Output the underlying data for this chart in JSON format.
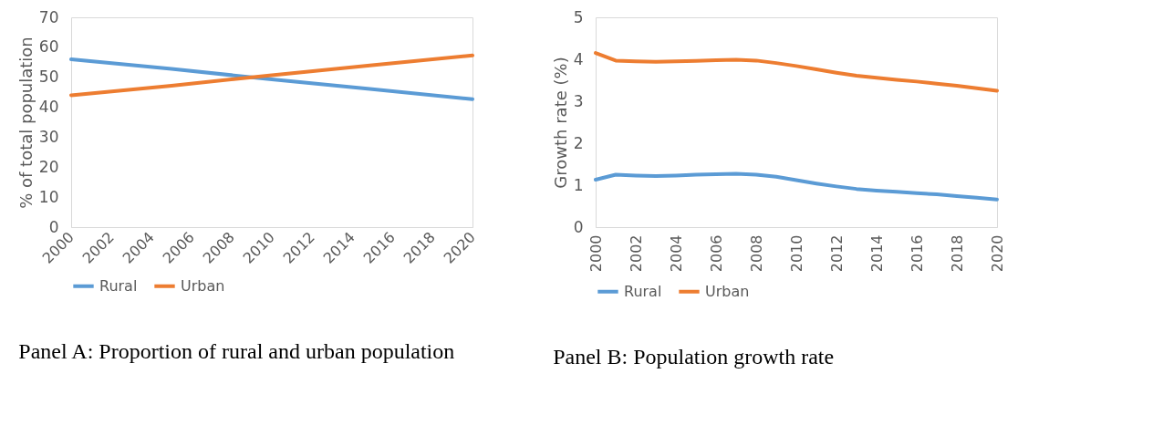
{
  "chart_data": [
    {
      "type": "line",
      "title": "Panel A: Proportion of rural and urban population",
      "ylabel": "% of total population",
      "x": [
        2000,
        2005,
        2009,
        2010,
        2015,
        2020
      ],
      "xlim": [
        2000,
        2020
      ],
      "xticks": [
        2000,
        2002,
        2004,
        2006,
        2008,
        2010,
        2012,
        2014,
        2016,
        2018,
        2020
      ],
      "ylim": [
        0,
        70
      ],
      "yticks": [
        0,
        10,
        20,
        30,
        40,
        50,
        60,
        70
      ],
      "grid": false,
      "legend": "bottom",
      "series": [
        {
          "name": "Rural",
          "color": "#5b9bd5",
          "values": [
            56.0,
            52.8,
            50.0,
            49.3,
            46.0,
            42.7
          ]
        },
        {
          "name": "Urban",
          "color": "#ed7d31",
          "values": [
            44.0,
            47.2,
            50.0,
            50.7,
            54.0,
            57.3
          ]
        }
      ]
    },
    {
      "type": "line",
      "title": "Panel B: Population growth rate",
      "ylabel": "Growth rate (%)",
      "x": [
        2000,
        2001,
        2002,
        2003,
        2004,
        2005,
        2006,
        2007,
        2008,
        2009,
        2010,
        2011,
        2012,
        2013,
        2014,
        2015,
        2016,
        2017,
        2018,
        2019,
        2020
      ],
      "xlim": [
        2000,
        2020
      ],
      "xticks": [
        2000,
        2002,
        2004,
        2006,
        2008,
        2010,
        2012,
        2014,
        2016,
        2018,
        2020
      ],
      "ylim": [
        0,
        5
      ],
      "yticks": [
        0,
        1,
        2,
        3,
        4,
        5
      ],
      "grid": false,
      "legend": "bottom",
      "series": [
        {
          "name": "Rural",
          "color": "#5b9bd5",
          "values": [
            1.13,
            1.25,
            1.23,
            1.22,
            1.23,
            1.25,
            1.26,
            1.27,
            1.25,
            1.2,
            1.12,
            1.04,
            0.97,
            0.91,
            0.87,
            0.84,
            0.81,
            0.78,
            0.74,
            0.7,
            0.66
          ]
        },
        {
          "name": "Urban",
          "color": "#ed7d31",
          "values": [
            4.15,
            3.97,
            3.95,
            3.94,
            3.95,
            3.96,
            3.98,
            3.99,
            3.97,
            3.91,
            3.84,
            3.76,
            3.68,
            3.61,
            3.56,
            3.51,
            3.47,
            3.42,
            3.37,
            3.31,
            3.25
          ]
        }
      ]
    }
  ]
}
